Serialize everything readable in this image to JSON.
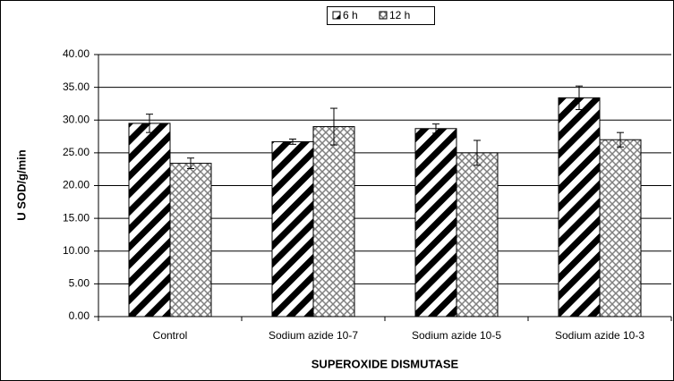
{
  "chart_data": {
    "type": "bar",
    "x_label": "SUPEROXIDE DISMUTASE",
    "y_label": "U SOD/g/min",
    "categories": [
      "Control",
      "Sodium azide 10-7",
      "Sodium azide 10-5",
      "Sodium azide 10-3"
    ],
    "series": [
      {
        "name": "6 h",
        "color": "#000000",
        "values": [
          29.5,
          26.7,
          28.7,
          33.4
        ],
        "errors": [
          1.4,
          0.4,
          0.7,
          1.8
        ]
      },
      {
        "name": "12 h",
        "color": "#808080",
        "values": [
          23.4,
          29.0,
          25.0,
          27.0
        ],
        "errors": [
          0.8,
          2.8,
          1.9,
          1.1
        ]
      }
    ],
    "ylim": [
      0,
      40
    ],
    "yticks": [
      {
        "value": 0,
        "label": "0.00"
      },
      {
        "value": 5,
        "label": "5.00"
      },
      {
        "value": 10,
        "label": "10.00"
      },
      {
        "value": 15,
        "label": "15.00"
      },
      {
        "value": 20,
        "label": "20.00"
      },
      {
        "value": 25,
        "label": "25.00"
      },
      {
        "value": 30,
        "label": "30.00"
      },
      {
        "value": 35,
        "label": "35.00"
      },
      {
        "value": 40,
        "label": "40.00"
      }
    ],
    "grid": true,
    "legend": "top"
  }
}
